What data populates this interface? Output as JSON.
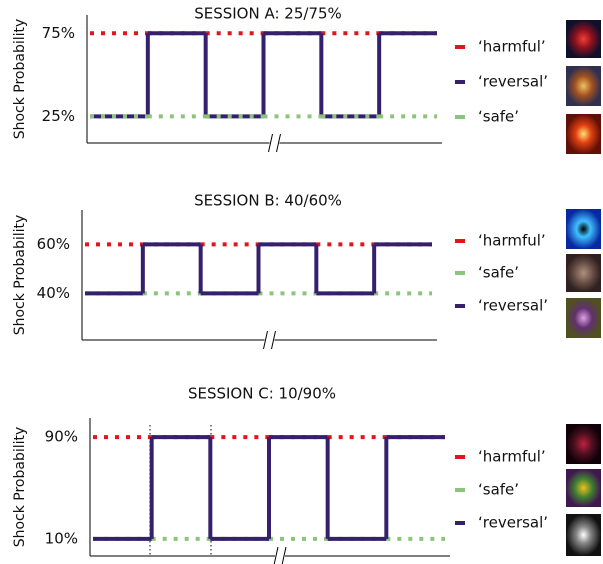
{
  "chart_data": [
    {
      "type": "line",
      "title": "SESSION A: 25/75%",
      "y_label": "Shock Probability",
      "categories": [
        null,
        null,
        null,
        null,
        null,
        null
      ],
      "ylim": [
        9,
        86
      ],
      "yticks": [
        {
          "value": 25,
          "label": "25%"
        },
        {
          "value": 75,
          "label": "75%"
        }
      ],
      "series": [
        {
          "name": "‘harmful’",
          "color": "#e3141c",
          "style": "dotted",
          "values": [
            75,
            75,
            75,
            75,
            75,
            75
          ]
        },
        {
          "name": "‘reversal’",
          "color": "#35206e",
          "style": "solid",
          "values": [
            25,
            75,
            25,
            75,
            25,
            75
          ]
        },
        {
          "name": "‘safe’",
          "color": "#8dc47c",
          "style": "dotted",
          "values": [
            25,
            25,
            25,
            25,
            25,
            25
          ]
        }
      ]
    },
    {
      "type": "line",
      "title": "SESSION B: 40/60%",
      "y_label": "Shock Probability",
      "categories": [
        null,
        null,
        null,
        null,
        null,
        null
      ],
      "ylim": [
        21,
        74
      ],
      "yticks": [
        {
          "value": 40,
          "label": "40%"
        },
        {
          "value": 60,
          "label": "60%"
        }
      ],
      "series": [
        {
          "name": "‘harmful’",
          "color": "#e3141c",
          "style": "dotted",
          "values": [
            60,
            60,
            60,
            60,
            60,
            60
          ]
        },
        {
          "name": "‘safe’",
          "color": "#8dc47c",
          "style": "dotted",
          "values": [
            40,
            40,
            40,
            40,
            40,
            40
          ]
        },
        {
          "name": "‘reversal’",
          "color": "#35206e",
          "style": "solid",
          "values": [
            40,
            60,
            40,
            60,
            40,
            60
          ]
        }
      ]
    },
    {
      "type": "line",
      "title": "SESSION C: 10/90%",
      "y_label": "Shock Probability",
      "categories": [
        null,
        null,
        null,
        null,
        null,
        null
      ],
      "ylim": [
        -3.5,
        105
      ],
      "yticks": [
        {
          "value": 10,
          "label": "10%"
        },
        {
          "value": 90,
          "label": "90%"
        }
      ],
      "series": [
        {
          "name": "‘harmful’",
          "color": "#e3141c",
          "style": "dotted",
          "values": [
            90,
            90,
            90,
            90,
            90,
            90
          ]
        },
        {
          "name": "‘safe’",
          "color": "#8dc47c",
          "style": "dotted",
          "values": [
            10,
            10,
            10,
            10,
            10,
            10
          ]
        },
        {
          "name": "‘reversal’",
          "color": "#35206e",
          "style": "solid",
          "values": [
            10,
            90,
            10,
            90,
            10,
            90
          ]
        }
      ]
    }
  ]
}
